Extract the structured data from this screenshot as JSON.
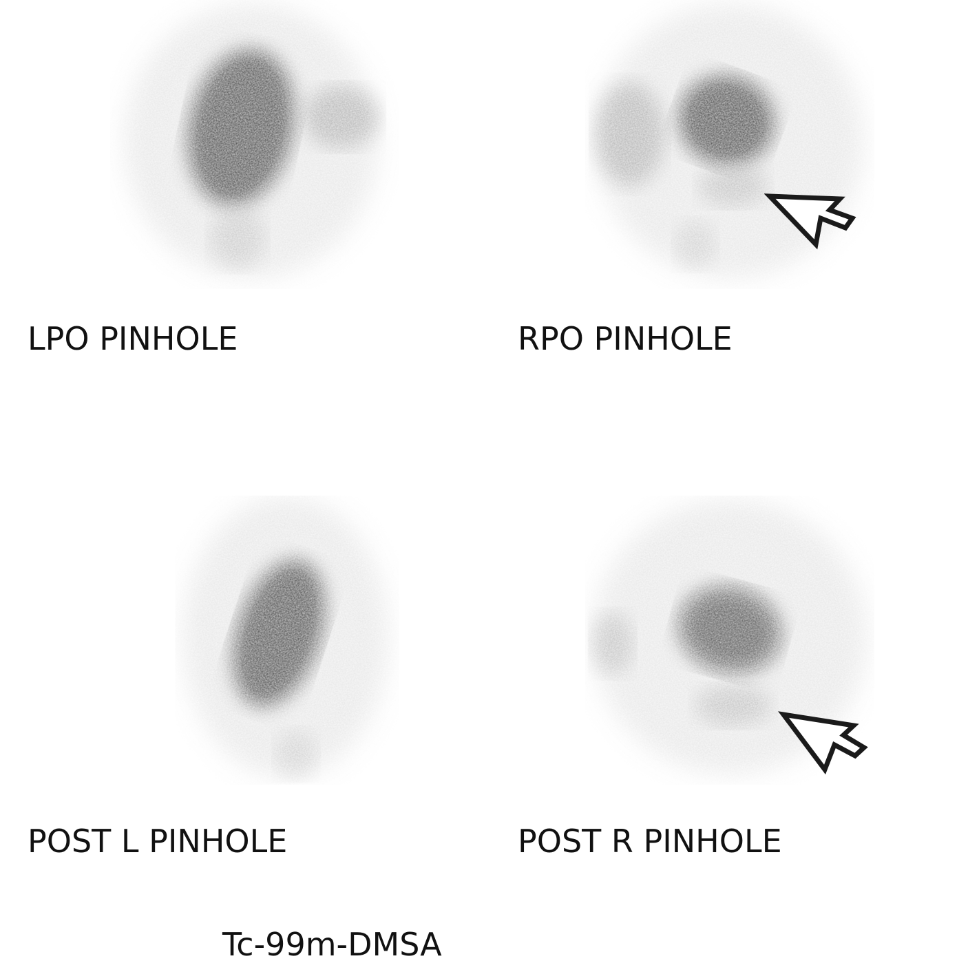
{
  "views": [
    {
      "label": "LPO PINHOLE",
      "arrow": false
    },
    {
      "label": "RPO PINHOLE",
      "arrow": true
    },
    {
      "label": "POST L PINHOLE",
      "arrow": false
    },
    {
      "label": "POST R PINHOLE",
      "arrow": true
    }
  ],
  "tracer": "Tc-99m-DMSA",
  "colors": {
    "background": "#ffffff",
    "uptake": "#111111",
    "arrow": "#1a1a1a"
  }
}
